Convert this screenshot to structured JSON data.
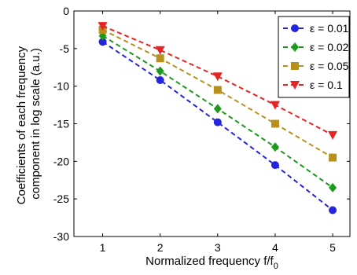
{
  "chart_data": {
    "type": "line",
    "title": "",
    "xlabel": "Normalized frequency f/f",
    "xlabel_sub": "0",
    "ylabel_lines": [
      "Coefficients of each frequency",
      "component in log scale (a.u.)"
    ],
    "xlim": [
      0.5,
      5.3
    ],
    "ylim": [
      -30,
      0
    ],
    "xticks": [
      "1",
      "2",
      "3",
      "4",
      "5"
    ],
    "yticks": [
      "0",
      "-5",
      "-10",
      "-15",
      "-20",
      "-25",
      "-30"
    ],
    "x": [
      1,
      2,
      3,
      4,
      5
    ],
    "grid": false,
    "legend_position": "top-right",
    "series": [
      {
        "name": "ε = 0.01",
        "color": "#2323e0",
        "marker": "circle",
        "values": [
          -4.1,
          -9.2,
          -14.8,
          -20.5,
          -26.5
        ]
      },
      {
        "name": "ε = 0.02",
        "color": "#1c9a1c",
        "marker": "diamond",
        "values": [
          -3.3,
          -8.0,
          -13.0,
          -18.1,
          -23.5
        ]
      },
      {
        "name": "ε = 0.05",
        "color": "#b8901e",
        "marker": "square",
        "values": [
          -2.5,
          -6.3,
          -10.5,
          -15.0,
          -19.5
        ]
      },
      {
        "name": "ε = 0.1",
        "color": "#e82323",
        "marker": "triangle-down",
        "values": [
          -2.0,
          -5.2,
          -8.7,
          -12.5,
          -16.5
        ]
      }
    ]
  }
}
